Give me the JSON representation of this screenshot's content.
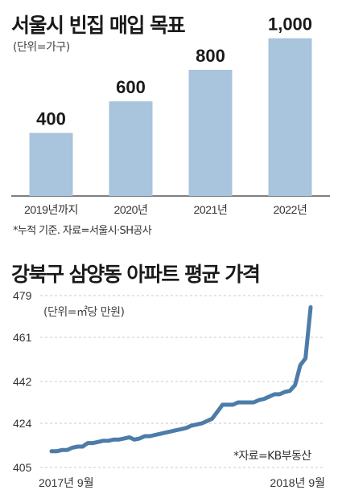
{
  "chart_data": [
    {
      "type": "bar",
      "title": "서울시 빈집 매입 목표",
      "unit_label": "(단위=가구)",
      "categories": [
        "2019년까지",
        "2020년",
        "2021년",
        "2022년"
      ],
      "values": [
        400,
        600,
        800,
        1000
      ],
      "value_labels": [
        "400",
        "600",
        "800",
        "1,000"
      ],
      "ylim": [
        0,
        1100
      ],
      "note": "*누적 기준. 자료=서울시·SH공사",
      "color": "#a9c4dd",
      "grid": false
    },
    {
      "type": "line",
      "title": "강북구 삼양동 아파트 평균 가격",
      "unit_label": "(단위=㎡당 만원)",
      "ylim": [
        405,
        479
      ],
      "yticks": [
        405,
        424,
        442,
        461,
        479
      ],
      "xtick_labels": [
        "2017년 9월",
        "2018년 9월"
      ],
      "values": [
        412,
        412,
        412.5,
        412.5,
        413.5,
        414,
        414,
        415.5,
        415.5,
        416,
        416.5,
        416.5,
        417,
        417,
        417.5,
        418,
        417,
        417.5,
        418.5,
        418.5,
        419,
        419.5,
        420,
        420.5,
        421,
        421.5,
        422,
        423,
        423.5,
        424,
        425,
        426,
        429,
        432,
        432,
        432,
        433,
        433,
        433,
        433,
        434,
        434.5,
        435.5,
        436.5,
        436.5,
        437.5,
        438,
        440.5,
        449,
        452,
        474
      ],
      "source": "*자료=KB부동산",
      "color": "#4c7ca8",
      "grid": true
    }
  ]
}
